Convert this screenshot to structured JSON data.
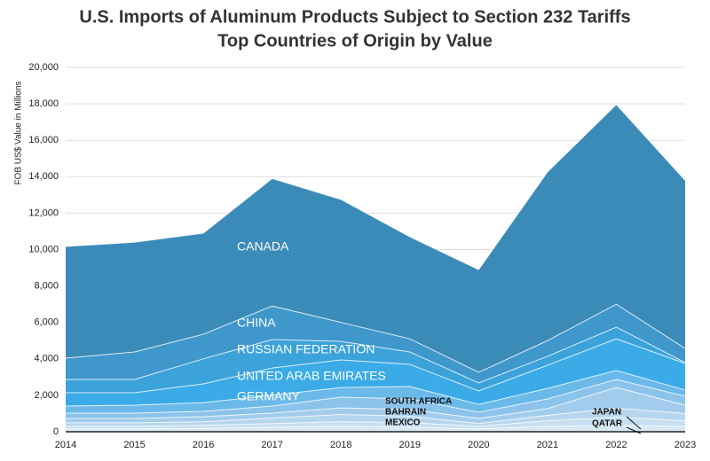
{
  "chart_data": {
    "type": "stacked_area",
    "title": "U.S. Imports of Aluminum Products Subject to Section 232 Tariffs",
    "subtitle": "Top Countries of Origin by Value",
    "y_label": "FOB US$ Value in Millions",
    "x": [
      2014,
      2015,
      2016,
      2017,
      2018,
      2019,
      2020,
      2021,
      2022,
      2023
    ],
    "xlim": [
      2014,
      2023
    ],
    "xticks": [
      2014,
      2015,
      2016,
      2017,
      2018,
      2019,
      2020,
      2021,
      2022,
      2023
    ],
    "ylim": [
      0,
      20000
    ],
    "yticks": [
      0,
      {
        "value": 2000,
        "label": "2,000"
      },
      {
        "value": 4000,
        "label": "4,000"
      },
      {
        "value": 6000,
        "label": "6,000"
      },
      {
        "value": 8000,
        "label": "8,000"
      },
      {
        "value": 10000,
        "label": "10,000"
      },
      {
        "value": 12000,
        "label": "12,000"
      },
      {
        "value": 14000,
        "label": "14,000"
      },
      {
        "value": 16000,
        "label": "16,000"
      },
      {
        "value": 18000,
        "label": "18,000"
      },
      {
        "value": 20000,
        "label": "20,000"
      }
    ],
    "series": [
      {
        "name": "CANADA",
        "color": "#3b8bb8",
        "values": [
          6130,
          6020,
          5550,
          7000,
          6750,
          5600,
          5640,
          9260,
          10960,
          9230
        ]
      },
      {
        "name": "CHINA",
        "color": "#3f97cc",
        "values": [
          1170,
          1510,
          1350,
          1840,
          1040,
          720,
          580,
          860,
          1260,
          770
        ]
      },
      {
        "name": "RUSSIAN FEDERATION",
        "color": "#3ca2da",
        "values": [
          730,
          730,
          1370,
          1560,
          1020,
          680,
          440,
          490,
          640,
          50
        ]
      },
      {
        "name": "UNITED ARAB EMIRATES",
        "color": "#3aabe6",
        "values": [
          730,
          680,
          1030,
          1500,
          1510,
          1220,
          740,
          1270,
          1740,
          1460
        ]
      },
      {
        "name": "GERMANY",
        "color": "#6ab9e9",
        "values": [
          390,
          440,
          480,
          590,
          530,
          680,
          430,
          580,
          490,
          340
        ]
      },
      {
        "name": "SOUTH AFRICA",
        "color": "#8cc3ea",
        "values": [
          290,
          290,
          290,
          390,
          590,
          580,
          340,
          530,
          440,
          490
        ]
      },
      {
        "name": "BAHRAIN",
        "color": "#a3ccec",
        "values": [
          240,
          240,
          280,
          270,
          360,
          370,
          280,
          370,
          1130,
          460
        ]
      },
      {
        "name": "MEXICO",
        "color": "#b6d6ee",
        "values": [
          190,
          190,
          200,
          300,
          400,
          350,
          150,
          300,
          500,
          400
        ]
      },
      {
        "name": "JAPAN",
        "color": "#c7dff1",
        "values": [
          150,
          150,
          170,
          200,
          250,
          250,
          150,
          300,
          450,
          300
        ]
      },
      {
        "name": "QATAR",
        "color": "#d7e8f4",
        "values": [
          150,
          150,
          180,
          250,
          300,
          250,
          150,
          300,
          350,
          300
        ]
      }
    ],
    "grid": true
  }
}
